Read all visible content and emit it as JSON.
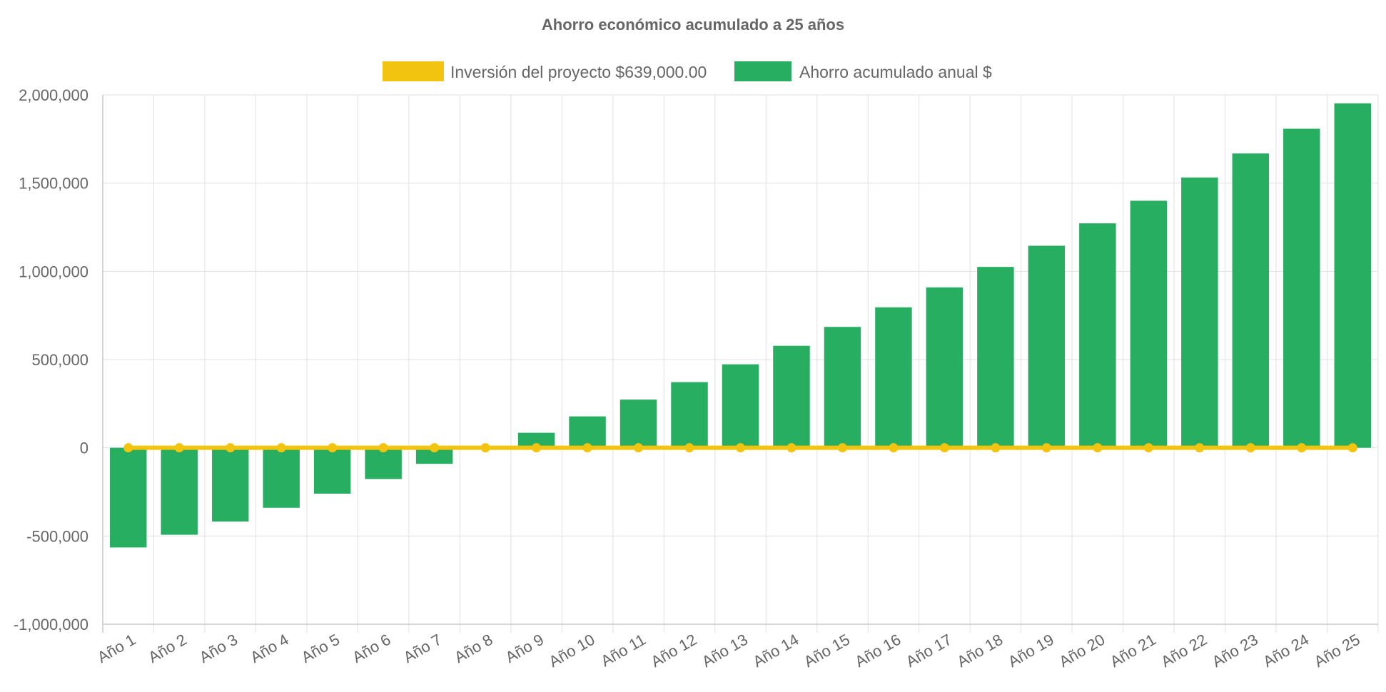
{
  "chart_data": {
    "type": "bar",
    "title": "Ahorro económico acumulado a 25 años",
    "categories": [
      "Año 1",
      "Año 2",
      "Año 3",
      "Año 4",
      "Año 5",
      "Año 6",
      "Año 7",
      "Año 8",
      "Año 9",
      "Año 10",
      "Año 11",
      "Año 12",
      "Año 13",
      "Año 14",
      "Año 15",
      "Año 16",
      "Año 17",
      "Año 18",
      "Año 19",
      "Año 20",
      "Año 21",
      "Año 22",
      "Año 23",
      "Año 24",
      "Año 25"
    ],
    "series": [
      {
        "name": "Inversión del proyecto $639,000.00",
        "type": "line",
        "color": "#f2c40f",
        "values": [
          0,
          0,
          0,
          0,
          0,
          0,
          0,
          0,
          0,
          0,
          0,
          0,
          0,
          0,
          0,
          0,
          0,
          0,
          0,
          0,
          0,
          0,
          0,
          0,
          0
        ]
      },
      {
        "name": "Ahorro acumulado anual $",
        "type": "bar",
        "color": "#27ae60",
        "values": [
          -565000,
          -493000,
          -418000,
          -340000,
          -260000,
          -177000,
          -91000,
          0,
          85000,
          178000,
          273000,
          372000,
          473000,
          578000,
          685000,
          796000,
          909000,
          1025000,
          1145000,
          1272000,
          1400000,
          1532000,
          1668000,
          1808000,
          1952000
        ]
      }
    ],
    "xlabel": "",
    "ylabel": "",
    "ylim": [
      -1000000,
      2000000
    ],
    "yticks": [
      2000000,
      1500000,
      1000000,
      500000,
      0,
      -500000,
      -1000000
    ],
    "ytick_labels": [
      "2,000,000",
      "1,500,000",
      "1,000,000",
      "500,000",
      "0",
      "-500,000",
      "-1,000,000"
    ],
    "grid": true,
    "legend_position": "top-center"
  }
}
